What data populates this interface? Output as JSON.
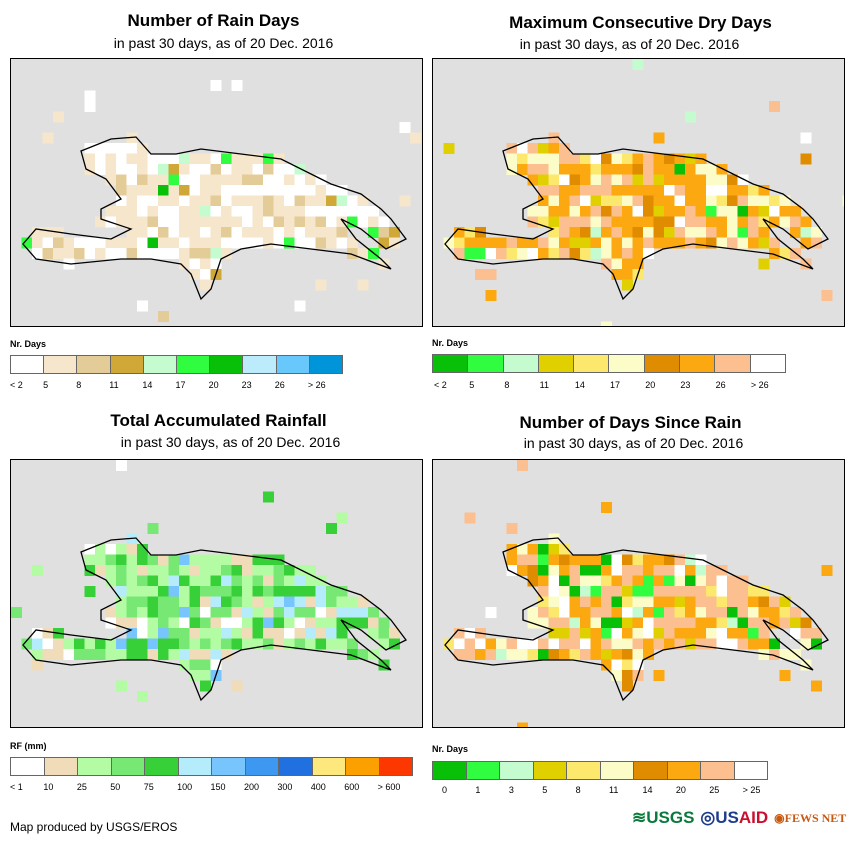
{
  "subtitle": "in past 30 days, as of 20 Dec. 2016",
  "panels": [
    {
      "title": "Number of Rain Days",
      "legend_title": "Nr. Days",
      "colors": [
        "#ffffff",
        "#f5e6cc",
        "#e4cc98",
        "#cfa838",
        "#c4fcd0",
        "#30fc40",
        "#08c008",
        "#bcecfc",
        "#68c8fc",
        "#0094d8"
      ],
      "labels": [
        "< 2",
        "5",
        "8",
        "11",
        "14",
        "17",
        "20",
        "23",
        "26",
        "> 26"
      ],
      "weights": [
        5,
        6,
        2,
        0.3,
        0.3,
        0.3,
        0.2,
        0,
        0,
        0
      ]
    },
    {
      "title": "Maximum Consecutive Dry Days",
      "legend_title": "Nr. Days",
      "colors": [
        "#08c008",
        "#30fc40",
        "#c4fcd0",
        "#e0d000",
        "#fce86c",
        "#fcfcc8",
        "#e08c00",
        "#fca810",
        "#fcc090",
        "#ffffff"
      ],
      "labels": [
        "< 2",
        "5",
        "8",
        "11",
        "14",
        "17",
        "20",
        "23",
        "26",
        "> 26"
      ],
      "weights": [
        0.2,
        0.4,
        0.3,
        1,
        1,
        2,
        1,
        5,
        3,
        1
      ]
    },
    {
      "title": "Total Accumulated Rainfall",
      "legend_title": "RF (mm)",
      "colors": [
        "#ffffff",
        "#f0dcb8",
        "#b4fca4",
        "#78e874",
        "#38d038",
        "#b4ecfc",
        "#78c4fc",
        "#3c98f0",
        "#2070e0",
        "#fce87c",
        "#fca000",
        "#fc3800"
      ],
      "labels": [
        "< 1",
        "10",
        "25",
        "50",
        "75",
        "100",
        "150",
        "200",
        "300",
        "400",
        "600",
        "> 600"
      ],
      "weights": [
        1,
        2,
        5,
        4,
        3,
        1,
        0.6,
        0,
        0,
        0,
        0,
        0
      ]
    },
    {
      "title": "Number of Days Since Rain",
      "legend_title": "Nr. Days",
      "colors": [
        "#08c008",
        "#30fc40",
        "#c4fcd0",
        "#e0d000",
        "#fce86c",
        "#fcfcc8",
        "#e08c00",
        "#fca810",
        "#fcc090",
        "#ffffff"
      ],
      "labels": [
        "0",
        "1",
        "3",
        "5",
        "8",
        "11",
        "14",
        "20",
        "25",
        "> 25"
      ],
      "weights": [
        0.8,
        0.4,
        0.3,
        0.5,
        1,
        2,
        0.4,
        3,
        4,
        2
      ]
    }
  ],
  "credit": "Map produced by USGS/EROS",
  "logos": [
    "USGS",
    "USAID",
    "FEWS NET"
  ]
}
